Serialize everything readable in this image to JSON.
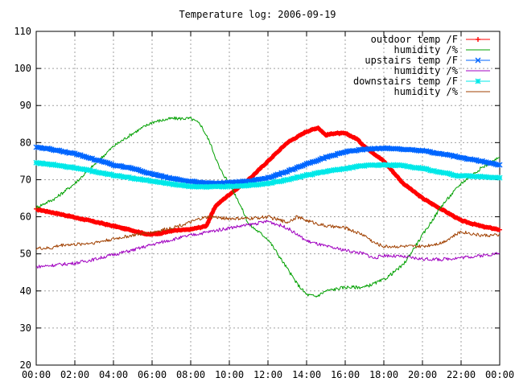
{
  "chart_data": {
    "type": "line",
    "title": "Temperature log: 2006-09-19",
    "xlabel": "",
    "ylabel": "",
    "xlim": [
      0,
      24
    ],
    "ylim": [
      20,
      110
    ],
    "x_ticks": [
      "00:00",
      "02:00",
      "04:00",
      "06:00",
      "08:00",
      "10:00",
      "12:00",
      "14:00",
      "16:00",
      "18:00",
      "20:00",
      "22:00",
      "00:00"
    ],
    "y_ticks": [
      "20",
      "30",
      "40",
      "50",
      "60",
      "70",
      "80",
      "90",
      "100",
      "110"
    ],
    "grid": true,
    "legend_position": "top-right",
    "series": [
      {
        "name": "outdoor temp /F",
        "color": "#ff0000",
        "marker": "plus",
        "x": [
          0,
          1,
          2,
          3,
          4,
          5,
          5.8,
          6.5,
          7,
          8,
          8.8,
          9.3,
          10,
          11,
          12,
          13,
          14,
          14.6,
          15,
          15.4,
          16,
          16.6,
          17,
          18,
          19,
          20,
          21,
          22,
          23,
          24
        ],
        "y": [
          62,
          61,
          59.8,
          58.7,
          57.5,
          56.3,
          55.2,
          55.6,
          56.2,
          56.6,
          57.5,
          63,
          66,
          70,
          75,
          80,
          83,
          84,
          82,
          82.5,
          82.5,
          81,
          79,
          75,
          69,
          65,
          62,
          59,
          57.5,
          56.5
        ]
      },
      {
        "name": "humidity /%",
        "color": "#00a000",
        "marker": "none",
        "x": [
          0,
          1,
          2,
          3,
          4,
          5,
          6,
          7,
          8,
          8.5,
          9,
          9.5,
          10,
          10.5,
          11,
          12,
          12.5,
          13,
          13.5,
          14,
          14.5,
          15,
          16,
          17,
          18,
          19,
          20,
          21,
          22,
          23,
          24
        ],
        "y": [
          62.5,
          65,
          69,
          74,
          79,
          82.5,
          85.5,
          86.5,
          86.5,
          85,
          80,
          73,
          69,
          64,
          58,
          54,
          50,
          46,
          42,
          39,
          38.5,
          40,
          41,
          41,
          43,
          47,
          55,
          63,
          69,
          73,
          76
        ]
      },
      {
        "name": "upstairs temp /F",
        "color": "#0066ff",
        "marker": "cross",
        "x": [
          0,
          1,
          2,
          3,
          4,
          5,
          6,
          7,
          8,
          9,
          10,
          11,
          12,
          13,
          14,
          15,
          16,
          17,
          18,
          19,
          20,
          21,
          22,
          23,
          24
        ],
        "y": [
          78.8,
          78,
          77,
          75.5,
          74,
          73,
          71.5,
          70.3,
          69.5,
          69,
          69.2,
          69.6,
          70.5,
          72.2,
          74.3,
          76,
          77.5,
          78.2,
          78.5,
          78.2,
          77.8,
          77,
          76,
          75,
          74
        ]
      },
      {
        "name": "humidity /%",
        "color": "#a000c0",
        "marker": "none",
        "x": [
          0,
          1,
          2,
          3,
          4,
          5,
          6,
          7,
          8,
          9,
          10,
          11,
          12,
          13,
          14,
          15,
          16,
          17,
          17.5,
          18,
          19,
          20,
          21,
          22,
          23,
          24
        ],
        "y": [
          46.5,
          47,
          47.5,
          48.5,
          49.8,
          51,
          52.5,
          53.8,
          55,
          56,
          57,
          57.8,
          58.8,
          57,
          53.5,
          52,
          51,
          50,
          48.8,
          49.6,
          49.2,
          48.6,
          48.5,
          49,
          49.5,
          50.2
        ]
      },
      {
        "name": "downstairs temp /F",
        "color": "#00e8e8",
        "marker": "star",
        "x": [
          0,
          1,
          2,
          3,
          4,
          5,
          6,
          7,
          8,
          9,
          10,
          11,
          12,
          13,
          14,
          15,
          16,
          17,
          18,
          19,
          20,
          21,
          21.8,
          22.5,
          23,
          24
        ],
        "y": [
          74.5,
          74,
          73.2,
          72.2,
          71.2,
          70.4,
          69.6,
          68.8,
          68.2,
          68,
          68.2,
          68.5,
          69,
          70,
          71.2,
          72.2,
          73,
          73.8,
          74,
          73.8,
          73,
          72,
          71,
          71,
          70.8,
          70.5
        ]
      },
      {
        "name": "humidity /%",
        "color": "#a04000",
        "marker": "none",
        "x": [
          0,
          0.8,
          1,
          1.5,
          2,
          3,
          4,
          5,
          6,
          7,
          8,
          8.5,
          9,
          10,
          11,
          12,
          13,
          13.5,
          14,
          15,
          16,
          17,
          17.5,
          18,
          19,
          20,
          21,
          22,
          23,
          24
        ],
        "y": [
          51.5,
          51.5,
          52,
          52.5,
          52.5,
          53,
          54,
          55,
          55.8,
          57,
          58.5,
          59.5,
          60,
          59.5,
          59.5,
          60,
          58.5,
          60,
          59,
          57.5,
          57,
          55,
          53,
          52,
          52,
          52,
          53,
          56,
          55,
          55
        ]
      }
    ]
  }
}
